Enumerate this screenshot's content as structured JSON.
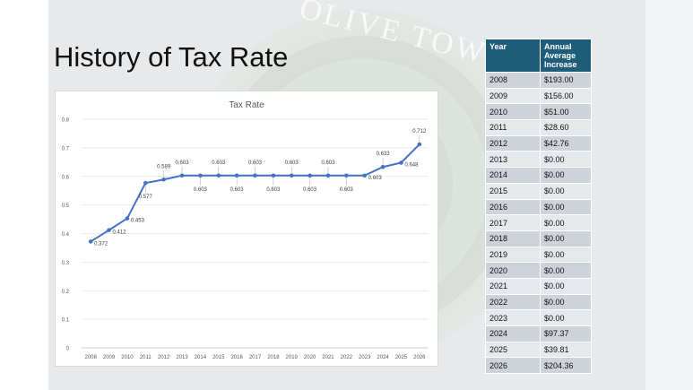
{
  "slide": {
    "title": "History of Tax Rate",
    "watermark": "OLIVE TOWNSHIP"
  },
  "table": {
    "headers": [
      "Year",
      "Annual Average Increase"
    ],
    "rows": [
      [
        "2008",
        "$193.00"
      ],
      [
        "2009",
        "$156.00"
      ],
      [
        "2010",
        "$51.00"
      ],
      [
        "2011",
        "$28.60"
      ],
      [
        "2012",
        "$42.76"
      ],
      [
        "2013",
        "$0.00"
      ],
      [
        "2014",
        "$0.00"
      ],
      [
        "2015",
        "$0.00"
      ],
      [
        "2016",
        "$0.00"
      ],
      [
        "2017",
        "$0.00"
      ],
      [
        "2018",
        "$0.00"
      ],
      [
        "2019",
        "$0.00"
      ],
      [
        "2020",
        "$0.00"
      ],
      [
        "2021",
        "$0.00"
      ],
      [
        "2022",
        "$0.00"
      ],
      [
        "2023",
        "$0.00"
      ],
      [
        "2024",
        "$97.37"
      ],
      [
        "2025",
        "$39.81"
      ],
      [
        "2026",
        "$204.36"
      ]
    ],
    "header_color": "#1e5c7a"
  },
  "chart_data": {
    "type": "line",
    "title": "Tax Rate",
    "xlabel": "",
    "ylabel": "",
    "categories": [
      "2008",
      "2009",
      "2010",
      "2011",
      "2012",
      "2013",
      "2014",
      "2015",
      "2016",
      "2017",
      "2018",
      "2019",
      "2020",
      "2021",
      "2022",
      "2023",
      "2024",
      "2025",
      "2026"
    ],
    "series": [
      {
        "values": [
          0.372,
          0.412,
          0.453,
          0.577,
          0.589,
          0.603,
          0.603,
          0.603,
          0.603,
          0.603,
          0.603,
          0.603,
          0.603,
          0.603,
          0.603,
          0.603,
          0.633,
          0.648,
          0.712
        ],
        "color": "#4472c4"
      }
    ],
    "data_labels": [
      "0.372",
      "0.412",
      "0.453",
      "0.577",
      "0.589",
      "0.603",
      "0.603",
      "0.603",
      "0.603",
      "0.603",
      "0.603",
      "0.603",
      "0.603",
      "0.603",
      "0.603",
      "0.603",
      "0.633",
      "0.648",
      "0.712"
    ],
    "yticks": [
      "0",
      "0.1",
      "0.2",
      "0.3",
      "0.4",
      "0.5",
      "0.6",
      "0.7",
      "0.8"
    ],
    "ylim": [
      0,
      0.8
    ],
    "grid": true,
    "legend": "none"
  }
}
